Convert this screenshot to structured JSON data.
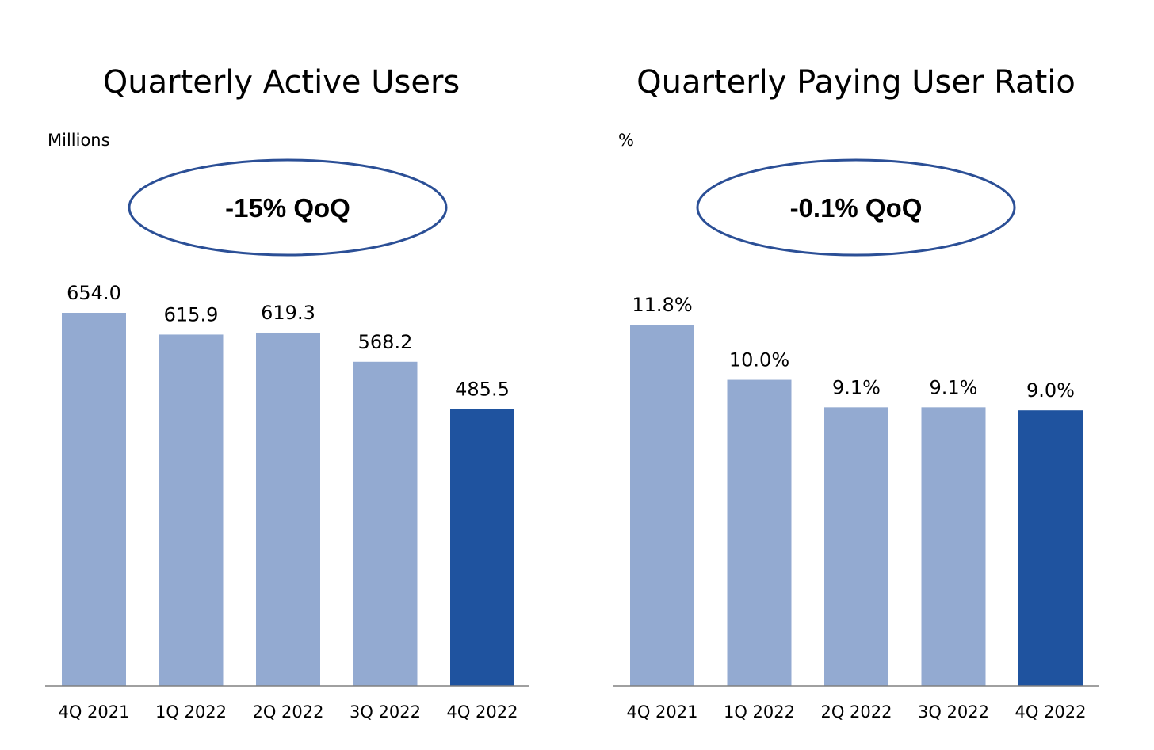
{
  "colors": {
    "bar_light": "#93aad1",
    "bar_highlight": "#1f539f",
    "ellipse_stroke": "#2b4f96",
    "axis": "#808080"
  },
  "chart_data": [
    {
      "type": "bar",
      "title": "Quarterly Active Users",
      "unit_label": "Millions",
      "annotation": "-15% QoQ",
      "categories": [
        "4Q 2021",
        "1Q 2022",
        "2Q 2022",
        "3Q 2022",
        "4Q 2022"
      ],
      "values": [
        654.0,
        615.9,
        619.3,
        568.2,
        485.5
      ],
      "value_labels": [
        "654.0",
        "615.9",
        "619.3",
        "568.2",
        "485.5"
      ],
      "highlight_index": 4,
      "ylim": [
        0,
        654.0
      ],
      "grid": false,
      "xlabel": "",
      "ylabel": ""
    },
    {
      "type": "bar",
      "title": "Quarterly Paying User Ratio",
      "unit_label": "%",
      "annotation": "-0.1% QoQ",
      "categories": [
        "4Q 2021",
        "1Q 2022",
        "2Q 2022",
        "3Q 2022",
        "4Q 2022"
      ],
      "values": [
        11.8,
        10.0,
        9.1,
        9.1,
        9.0
      ],
      "value_labels": [
        "11.8%",
        "10.0%",
        "9.1%",
        "9.1%",
        "9.0%"
      ],
      "highlight_index": 4,
      "ylim": [
        0,
        11.8
      ],
      "grid": false,
      "xlabel": "",
      "ylabel": ""
    }
  ]
}
